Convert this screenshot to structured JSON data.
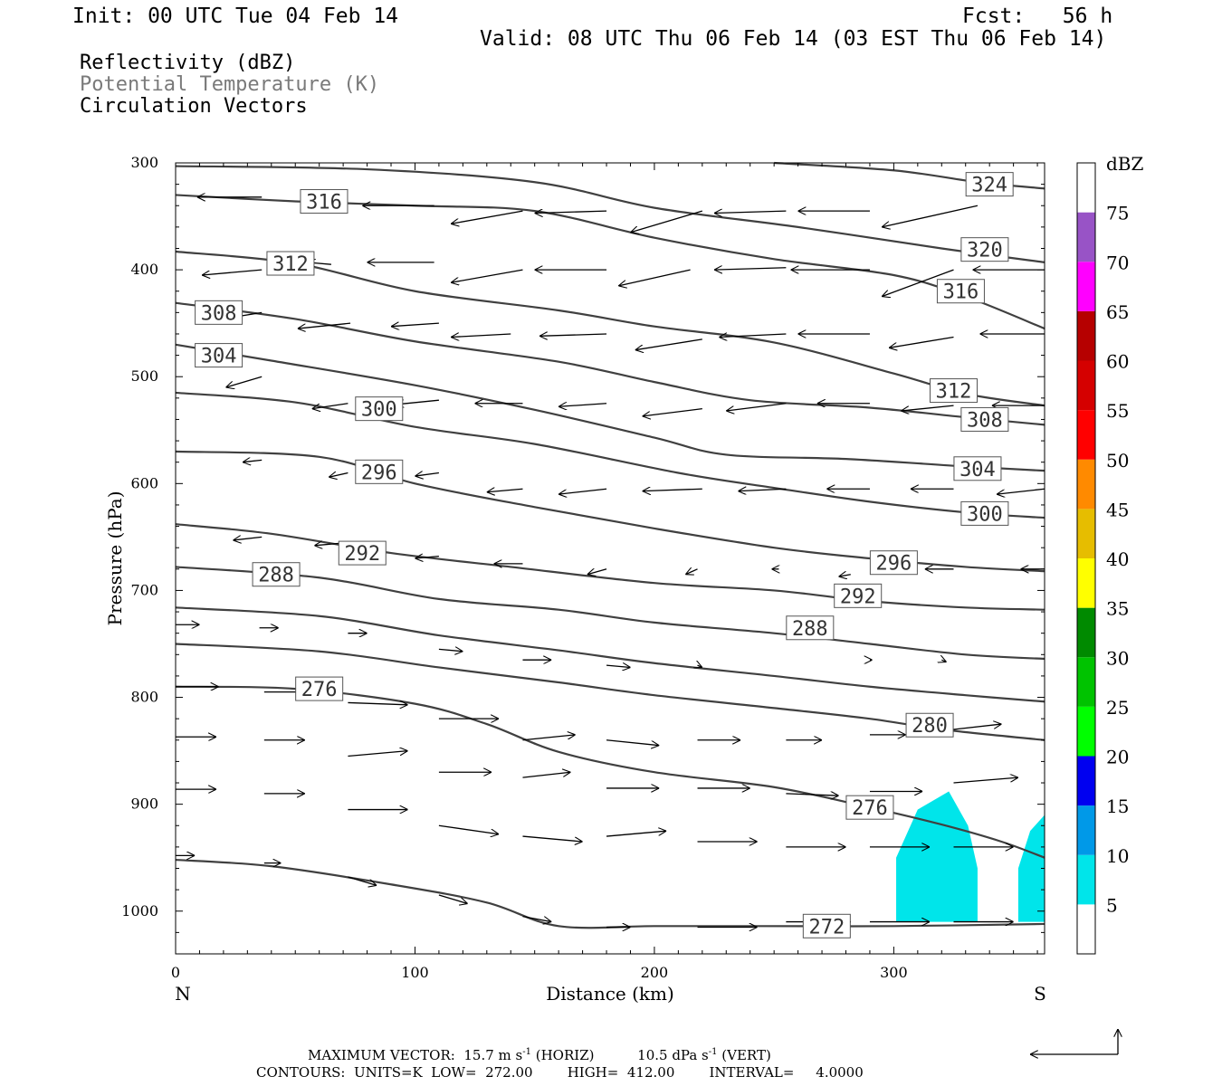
{
  "header": {
    "init": "Init: 00 UTC Tue 04 Feb 14",
    "fcst": "Fcst:   56 h",
    "valid": "Valid: 08 UTC Thu 06 Feb 14 (03 EST Thu 06 Feb 14)",
    "field1": "Reflectivity (dBZ)",
    "field2": "Potential Temperature (K)",
    "field3": "Circulation Vectors"
  },
  "colors": {
    "contour": "#404040",
    "refl_cyan": "#00e5ea"
  },
  "chart_data": {
    "type": "cross-section",
    "xlabel": "Distance (km)",
    "ylabel": "Pressure (hPa)",
    "xlim": [
      0,
      363
    ],
    "ylim": [
      1040,
      300
    ],
    "xticks": [
      0,
      100,
      200,
      300
    ],
    "yticks": [
      300,
      400,
      500,
      600,
      700,
      800,
      900,
      1000
    ],
    "x_end_labels": {
      "left": "N",
      "right": "S"
    },
    "contours": [
      {
        "value": 272,
        "label": "272",
        "points": [
          [
            0,
            952
          ],
          [
            40,
            958
          ],
          [
            90,
            975
          ],
          [
            130,
            992
          ],
          [
            160,
            1014
          ],
          [
            200,
            1014
          ],
          [
            240,
            1014
          ],
          [
            300,
            1014
          ],
          [
            363,
            1012
          ]
        ]
      },
      {
        "value": 276,
        "label": "276",
        "points": [
          [
            0,
            790
          ],
          [
            50,
            792
          ],
          [
            100,
            806
          ],
          [
            130,
            825
          ],
          [
            160,
            851
          ],
          [
            200,
            870
          ],
          [
            250,
            884
          ],
          [
            290,
            903
          ],
          [
            320,
            919
          ],
          [
            345,
            935
          ],
          [
            363,
            950
          ]
        ]
      },
      {
        "value": 280,
        "label": "280",
        "points": [
          [
            0,
            750
          ],
          [
            60,
            757
          ],
          [
            110,
            772
          ],
          [
            160,
            786
          ],
          [
            200,
            798
          ],
          [
            250,
            810
          ],
          [
            290,
            820
          ],
          [
            320,
            830
          ],
          [
            363,
            840
          ]
        ]
      },
      {
        "value": 284,
        "label": "",
        "points": [
          [
            0,
            716
          ],
          [
            60,
            724
          ],
          [
            110,
            742
          ],
          [
            160,
            756
          ],
          [
            200,
            768
          ],
          [
            250,
            780
          ],
          [
            290,
            790
          ],
          [
            330,
            798
          ],
          [
            363,
            804
          ]
        ]
      },
      {
        "value": 288,
        "label": "288",
        "points": [
          [
            0,
            678
          ],
          [
            60,
            688
          ],
          [
            110,
            708
          ],
          [
            160,
            718
          ],
          [
            200,
            730
          ],
          [
            250,
            740
          ],
          [
            290,
            750
          ],
          [
            330,
            760
          ],
          [
            363,
            764
          ]
        ]
      },
      {
        "value": 292,
        "label": "292",
        "points": [
          [
            0,
            638
          ],
          [
            40,
            647
          ],
          [
            90,
            665
          ],
          [
            140,
            678
          ],
          [
            200,
            693
          ],
          [
            250,
            700
          ],
          [
            290,
            710
          ],
          [
            330,
            716
          ],
          [
            363,
            718
          ]
        ]
      },
      {
        "value": 296,
        "label": "296",
        "points": [
          [
            0,
            570
          ],
          [
            60,
            575
          ],
          [
            100,
            600
          ],
          [
            150,
            622
          ],
          [
            200,
            642
          ],
          [
            250,
            660
          ],
          [
            290,
            670
          ],
          [
            330,
            678
          ],
          [
            363,
            682
          ]
        ]
      },
      {
        "value": 300,
        "label": "300",
        "points": [
          [
            0,
            515
          ],
          [
            50,
            524
          ],
          [
            100,
            547
          ],
          [
            150,
            563
          ],
          [
            210,
            590
          ],
          [
            250,
            604
          ],
          [
            290,
            617
          ],
          [
            330,
            627
          ],
          [
            363,
            632
          ]
        ]
      },
      {
        "value": 304,
        "label": "304",
        "points": [
          [
            0,
            470
          ],
          [
            40,
            485
          ],
          [
            100,
            508
          ],
          [
            150,
            531
          ],
          [
            200,
            557
          ],
          [
            230,
            573
          ],
          [
            280,
            577
          ],
          [
            330,
            584
          ],
          [
            363,
            588
          ]
        ]
      },
      {
        "value": 308,
        "label": "308",
        "points": [
          [
            0,
            431
          ],
          [
            50,
            446
          ],
          [
            100,
            467
          ],
          [
            160,
            486
          ],
          [
            200,
            505
          ],
          [
            240,
            522
          ],
          [
            290,
            529
          ],
          [
            330,
            538
          ],
          [
            363,
            545
          ]
        ]
      },
      {
        "value": 312,
        "label": "312",
        "points": [
          [
            0,
            383
          ],
          [
            50,
            394
          ],
          [
            100,
            420
          ],
          [
            160,
            438
          ],
          [
            200,
            453
          ],
          [
            250,
            468
          ],
          [
            300,
            497
          ],
          [
            330,
            516
          ],
          [
            363,
            527
          ]
        ]
      },
      {
        "value": 316,
        "label": "316",
        "points": [
          [
            0,
            330
          ],
          [
            50,
            336
          ],
          [
            100,
            340
          ],
          [
            150,
            345
          ],
          [
            200,
            370
          ],
          [
            250,
            390
          ],
          [
            300,
            405
          ],
          [
            330,
            425
          ],
          [
            363,
            455
          ]
        ]
      },
      {
        "value": 320,
        "label": "320",
        "points": [
          [
            0,
            303
          ],
          [
            80,
            306
          ],
          [
            150,
            318
          ],
          [
            200,
            342
          ],
          [
            260,
            360
          ],
          [
            320,
            380
          ],
          [
            363,
            393
          ]
        ]
      },
      {
        "value": 324,
        "label": "324",
        "points": [
          [
            250,
            300
          ],
          [
            300,
            307
          ],
          [
            335,
            318
          ],
          [
            363,
            324
          ]
        ]
      }
    ],
    "reflectivity": {
      "level": 5,
      "regions": [
        [
          [
            301,
            1010
          ],
          [
            301,
            950
          ],
          [
            310,
            905
          ],
          [
            323,
            888
          ],
          [
            331,
            920
          ],
          [
            335,
            960
          ],
          [
            335,
            1010
          ]
        ],
        [
          [
            352,
            1010
          ],
          [
            352,
            960
          ],
          [
            357,
            925
          ],
          [
            363,
            910
          ],
          [
            363,
            1010
          ]
        ]
      ]
    },
    "vectors": {
      "note": "u in km-equivalent horizontal arrow length; tail at given (x,p); head direction by sign",
      "items": [
        [
          36,
          332,
          -27,
          0
        ],
        [
          65,
          340,
          -10,
          -2
        ],
        [
          108,
          340,
          -30,
          0
        ],
        [
          145,
          345,
          -30,
          12
        ],
        [
          180,
          345,
          -30,
          2
        ],
        [
          220,
          345,
          -30,
          20
        ],
        [
          255,
          345,
          -30,
          2
        ],
        [
          290,
          345,
          -30,
          0
        ],
        [
          335,
          340,
          -40,
          20
        ],
        [
          36,
          400,
          -25,
          5
        ],
        [
          65,
          395,
          -10,
          -2
        ],
        [
          108,
          393,
          -28,
          0
        ],
        [
          145,
          400,
          -30,
          12
        ],
        [
          180,
          400,
          -30,
          0
        ],
        [
          215,
          400,
          -30,
          15
        ],
        [
          255,
          398,
          -30,
          2
        ],
        [
          290,
          400,
          -33,
          0
        ],
        [
          325,
          400,
          -30,
          25
        ],
        [
          363,
          400,
          -30,
          0
        ],
        [
          36,
          440,
          -22,
          8
        ],
        [
          73,
          450,
          -22,
          5
        ],
        [
          110,
          450,
          -20,
          3
        ],
        [
          140,
          460,
          -25,
          3
        ],
        [
          180,
          460,
          -28,
          2
        ],
        [
          220,
          465,
          -28,
          10
        ],
        [
          255,
          460,
          -28,
          3
        ],
        [
          290,
          460,
          -30,
          0
        ],
        [
          325,
          463,
          -27,
          10
        ],
        [
          363,
          460,
          -27,
          0
        ],
        [
          36,
          500,
          -15,
          10
        ],
        [
          72,
          525,
          -15,
          5
        ],
        [
          110,
          522,
          -18,
          4
        ],
        [
          145,
          525,
          -20,
          0
        ],
        [
          180,
          525,
          -20,
          3
        ],
        [
          220,
          530,
          -25,
          7
        ],
        [
          255,
          525,
          -25,
          7
        ],
        [
          290,
          525,
          -22,
          0
        ],
        [
          325,
          527,
          -22,
          5
        ],
        [
          363,
          527,
          -22,
          0
        ],
        [
          36,
          578,
          -8,
          2
        ],
        [
          72,
          590,
          -8,
          4
        ],
        [
          110,
          590,
          -10,
          3
        ],
        [
          145,
          605,
          -15,
          3
        ],
        [
          180,
          605,
          -20,
          5
        ],
        [
          220,
          605,
          -25,
          2
        ],
        [
          255,
          605,
          -20,
          2
        ],
        [
          290,
          605,
          -18,
          0
        ],
        [
          325,
          605,
          -18,
          0
        ],
        [
          363,
          605,
          -20,
          5
        ],
        [
          36,
          650,
          -12,
          3
        ],
        [
          73,
          655,
          -15,
          3
        ],
        [
          110,
          668,
          -10,
          2
        ],
        [
          145,
          675,
          -12,
          0
        ],
        [
          180,
          680,
          -8,
          5
        ],
        [
          218,
          680,
          -5,
          5
        ],
        [
          252,
          680,
          -3,
          0
        ],
        [
          282,
          685,
          -5,
          2
        ],
        [
          325,
          680,
          -12,
          0
        ],
        [
          363,
          680,
          -10,
          0
        ],
        [
          0,
          732,
          10,
          0
        ],
        [
          35,
          735,
          8,
          0
        ],
        [
          72,
          740,
          8,
          0
        ],
        [
          110,
          755,
          10,
          2
        ],
        [
          145,
          765,
          12,
          0
        ],
        [
          180,
          770,
          10,
          2
        ],
        [
          218,
          770,
          2,
          2
        ],
        [
          290,
          765,
          1,
          0
        ],
        [
          320,
          765,
          2,
          2
        ],
        [
          0,
          790,
          18,
          0
        ],
        [
          37,
          795,
          18,
          0
        ],
        [
          72,
          805,
          25,
          2
        ],
        [
          110,
          820,
          25,
          0
        ],
        [
          145,
          840,
          22,
          -5
        ],
        [
          180,
          840,
          22,
          5
        ],
        [
          218,
          840,
          18,
          0
        ],
        [
          255,
          840,
          15,
          0
        ],
        [
          290,
          835,
          15,
          0
        ],
        [
          325,
          830,
          20,
          -5
        ],
        [
          0,
          837,
          17,
          0
        ],
        [
          37,
          840,
          17,
          0
        ],
        [
          72,
          855,
          25,
          -5
        ],
        [
          110,
          870,
          22,
          0
        ],
        [
          145,
          875,
          20,
          -5
        ],
        [
          180,
          885,
          22,
          0
        ],
        [
          218,
          885,
          22,
          0
        ],
        [
          255,
          890,
          22,
          2
        ],
        [
          290,
          888,
          22,
          0
        ],
        [
          325,
          880,
          27,
          -5
        ],
        [
          0,
          886,
          17,
          0
        ],
        [
          37,
          890,
          17,
          0
        ],
        [
          72,
          905,
          25,
          0
        ],
        [
          110,
          920,
          25,
          8
        ],
        [
          145,
          930,
          25,
          5
        ],
        [
          180,
          930,
          25,
          -5
        ],
        [
          218,
          935,
          25,
          0
        ],
        [
          255,
          940,
          25,
          0
        ],
        [
          290,
          940,
          25,
          0
        ],
        [
          325,
          940,
          25,
          0
        ],
        [
          0,
          948,
          8,
          0
        ],
        [
          37,
          955,
          7,
          0
        ],
        [
          72,
          968,
          12,
          8
        ],
        [
          110,
          985,
          12,
          8
        ],
        [
          145,
          1005,
          12,
          5
        ],
        [
          180,
          1015,
          10,
          0
        ],
        [
          218,
          1015,
          25,
          0
        ],
        [
          255,
          1010,
          27,
          0
        ],
        [
          290,
          1010,
          25,
          0
        ],
        [
          325,
          1010,
          25,
          0
        ]
      ]
    },
    "colorbar": {
      "title": "dBZ",
      "levels": [
        5,
        10,
        15,
        20,
        25,
        30,
        35,
        40,
        45,
        50,
        55,
        60,
        65,
        70,
        75
      ],
      "colors": [
        "#ffffff",
        "#00e5ea",
        "#0099e8",
        "#0000f0",
        "#00ff00",
        "#00c300",
        "#008a00",
        "#ffff00",
        "#e6bd00",
        "#ff8a00",
        "#ff0000",
        "#d50000",
        "#b60000",
        "#ff00ff",
        "#9853c6",
        "#ffffff"
      ]
    }
  },
  "footer": {
    "max_vector_prefix": "MAXIMUM VECTOR:  15.7 m s",
    "sup1": "-1",
    "max_vector_mid": " (HORIZ)          10.5 dPa s",
    "sup2": "-1",
    "max_vector_end": " (VERT)",
    "contours": "CONTOURS:  UNITS=K  LOW=  272.00        HIGH=  412.00        INTERVAL=     4.0000"
  }
}
